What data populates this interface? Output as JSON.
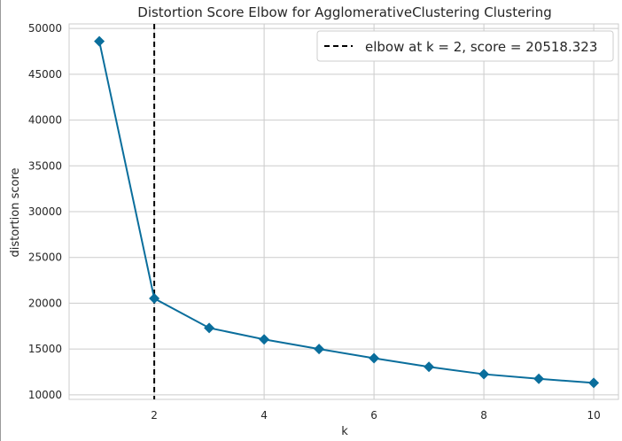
{
  "chart_data": {
    "type": "line",
    "title": "Distortion Score Elbow for AgglomerativeClustering Clustering",
    "xlabel": "k",
    "ylabel": "distortion score",
    "x": [
      1,
      2,
      3,
      4,
      5,
      6,
      7,
      8,
      9,
      10
    ],
    "series": [
      {
        "values": [
          48600,
          20518.323,
          17300,
          16050,
          15000,
          14000,
          13050,
          12250,
          11750,
          11300
        ],
        "color": "#0a6e9c",
        "marker": "diamond"
      }
    ],
    "xticks": [
      "2",
      "4",
      "6",
      "8",
      "10"
    ],
    "yticks": [
      "10000",
      "15000",
      "20000",
      "25000",
      "30000",
      "35000",
      "40000",
      "45000",
      "50000"
    ],
    "xlim": [
      0.45,
      10.45
    ],
    "ylim": [
      9500,
      50500
    ],
    "grid": true,
    "elbow": {
      "k": 2,
      "score": 20518.323,
      "color": "#000000",
      "legend_label": "elbow at k = 2, score = 20518.323"
    },
    "legend_position": "top-right"
  }
}
